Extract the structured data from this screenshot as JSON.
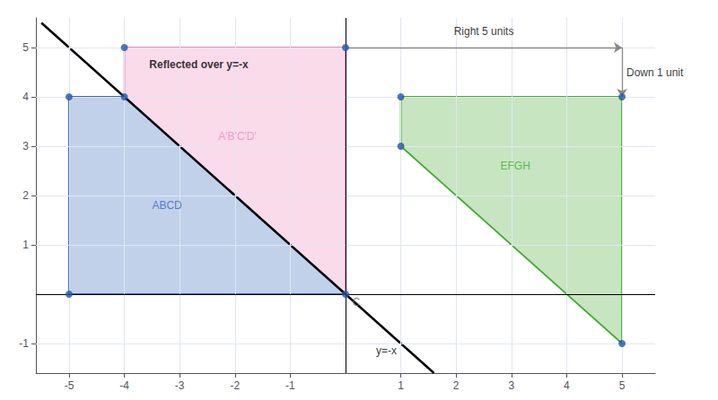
{
  "chart_data": {
    "type": "polygon",
    "xlim": [
      -5.6,
      5.6
    ],
    "ylim": [
      -1.6,
      5.6
    ],
    "xticks": [
      -5,
      -4,
      -3,
      -2,
      -1,
      1,
      2,
      3,
      4,
      5
    ],
    "yticks": [
      -1,
      1,
      2,
      3,
      4,
      5
    ],
    "grid": true,
    "series": [
      {
        "name": "ABCD",
        "type": "polygon",
        "color": "#3366bb",
        "values": [
          [
            -5,
            0
          ],
          [
            -5,
            4
          ],
          [
            -4,
            4
          ],
          [
            0,
            0
          ]
        ],
        "label_at": [
          -3.5,
          1.7
        ]
      },
      {
        "name": "A'B'C'D'",
        "type": "polygon",
        "color": "#ee88bb",
        "values": [
          [
            0,
            5
          ],
          [
            -4,
            5
          ],
          [
            -4,
            4
          ],
          [
            0,
            0
          ]
        ],
        "label_at": [
          -2.3,
          3.1
        ]
      },
      {
        "name": "EFGH",
        "type": "polygon",
        "color": "#44aa33",
        "values": [
          [
            1,
            4
          ],
          [
            1,
            3
          ],
          [
            5,
            -1
          ],
          [
            5,
            4
          ]
        ],
        "label_at": [
          2.8,
          2.5
        ]
      },
      {
        "name": "y=-x",
        "type": "line",
        "color": "#000000",
        "values": [
          [
            -5.5,
            5.5
          ],
          [
            1.6,
            -1.6
          ]
        ],
        "label_at": [
          0.55,
          -1.25
        ]
      },
      {
        "type": "scatter",
        "color": "#2255aa",
        "values": [
          [
            -5,
            0
          ],
          [
            -5,
            4
          ],
          [
            -4,
            4
          ],
          [
            -4,
            5
          ],
          [
            0,
            5
          ],
          [
            1,
            4
          ],
          [
            1,
            3
          ],
          [
            5,
            -1
          ],
          [
            5,
            4
          ],
          [
            0,
            0
          ]
        ]
      }
    ],
    "arrows": [
      {
        "from": [
          0,
          5
        ],
        "to": [
          5,
          5
        ],
        "label": "Right 5 units",
        "label_at": [
          2.5,
          5.22
        ],
        "color": "#888888"
      },
      {
        "from": [
          5,
          5
        ],
        "to": [
          5,
          4
        ],
        "label": "Down 1 unit",
        "label_at": [
          5.08,
          4.5
        ],
        "color": "#888888"
      }
    ],
    "annotations": [
      {
        "text": "Reflected over y=-x",
        "x": -3.55,
        "y": 4.55,
        "color": "#000000"
      },
      {
        "text": "C",
        "x": 0.12,
        "y": -0.28,
        "color": "#666666"
      }
    ]
  }
}
